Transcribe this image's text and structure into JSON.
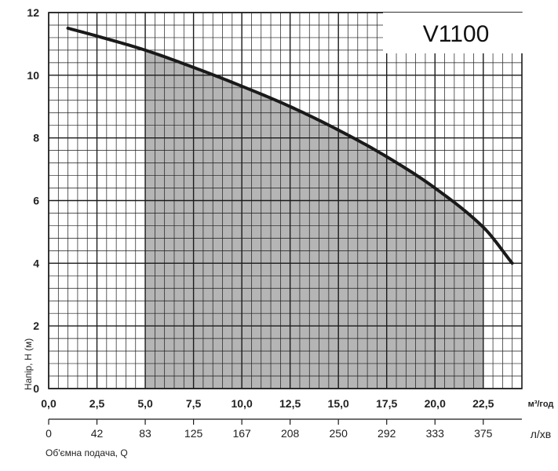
{
  "chart_data": {
    "type": "area",
    "title": "V1100",
    "ylabel": "Напір, H (м)",
    "xlabel": "Об'ємна подача, Q",
    "x_unit": "м³/год",
    "x2_unit": "л/хв",
    "xlim": [
      0,
      24.5
    ],
    "ylim": [
      0,
      12
    ],
    "x_ticks": [
      "0,0",
      "2,5",
      "5,0",
      "7,5",
      "10,0",
      "12,5",
      "15,0",
      "17,5",
      "20,0",
      "22,5"
    ],
    "x_tick_values": [
      0,
      2.5,
      5,
      7.5,
      10,
      12.5,
      15,
      17.5,
      20,
      22.5
    ],
    "x2_ticks": [
      "0",
      "42",
      "83",
      "125",
      "167",
      "208",
      "250",
      "292",
      "333",
      "375"
    ],
    "y_ticks": [
      "0",
      "2",
      "4",
      "6",
      "8",
      "10",
      "12"
    ],
    "y_tick_values": [
      0,
      2,
      4,
      6,
      8,
      10,
      12
    ],
    "grid": true,
    "series": [
      {
        "x": [
          1,
          2.5,
          5,
          7.5,
          10,
          12.5,
          15,
          17.5,
          20,
          22.5,
          24
        ],
        "y": [
          11.5,
          11.25,
          10.8,
          10.25,
          9.65,
          9.0,
          8.25,
          7.4,
          6.4,
          5.15,
          4.0
        ]
      }
    ],
    "shaded_region": [
      5,
      22.5
    ],
    "colors": {
      "curve": "#1a1a1a",
      "shade": "#b5b5b5",
      "grid": "#1a1a1a"
    }
  }
}
